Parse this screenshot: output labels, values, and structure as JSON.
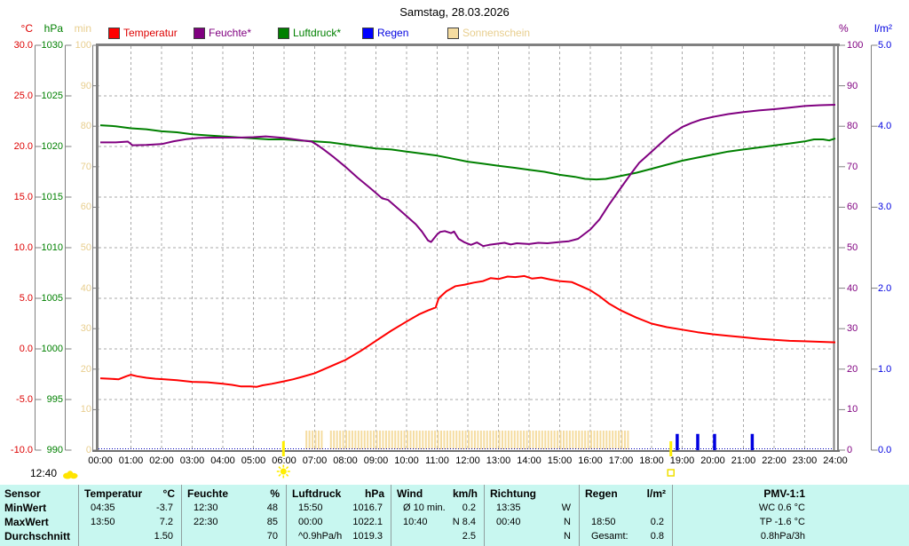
{
  "title": "Samstag, 28.03.2026",
  "sunshine_total": "12:40",
  "colors": {
    "temperature": "#dd0000",
    "temperature_line": "#ff0000",
    "humidity": "#800080",
    "pressure": "#008000",
    "rain": "#0000e0",
    "rain_box": "#0000ff",
    "sunshine": "#e8ce8e",
    "sunshine_bar": "#f5dca0",
    "grid": "#a8a8a8",
    "border": "#808080",
    "table_bg": "#c8f7f0",
    "marker_yellow": "#ffee00"
  },
  "legend": [
    {
      "label": "Temperatur",
      "color": "#dd0000",
      "box": "#ff0000"
    },
    {
      "label": "Feuchte*",
      "color": "#800080",
      "box": "#800080"
    },
    {
      "label": "Luftdruck*",
      "color": "#008000",
      "box": "#008000"
    },
    {
      "label": "Regen",
      "color": "#0000e0",
      "box": "#0000ff"
    },
    {
      "label": "Sonnenschein",
      "color": "#e8ce8e",
      "box": "#f5dca0"
    }
  ],
  "axes": {
    "temperature": {
      "unit": "°C",
      "color": "#dd0000",
      "ticks": [
        "30.0",
        "25.0",
        "20.0",
        "15.0",
        "10.0",
        "5.0",
        "0.0",
        "-5.0",
        "-10.0"
      ]
    },
    "pressure": {
      "unit": "hPa",
      "color": "#008000",
      "ticks": [
        "1030",
        "1025",
        "1020",
        "1015",
        "1010",
        "1005",
        "1000",
        "995",
        "990"
      ]
    },
    "sunshine": {
      "unit": "min",
      "color": "#e8ce8e",
      "ticks": [
        "100",
        "90",
        "80",
        "70",
        "60",
        "50",
        "40",
        "30",
        "20",
        "10",
        "0"
      ]
    },
    "humidity": {
      "unit": "%",
      "color": "#800080",
      "ticks": [
        "100",
        "90",
        "80",
        "70",
        "60",
        "50",
        "40",
        "30",
        "20",
        "10",
        "0"
      ]
    },
    "rain": {
      "unit": "l/m²",
      "color": "#0000e0",
      "ticks": [
        "5.0",
        "4.0",
        "3.0",
        "2.0",
        "1.0",
        "0.0"
      ]
    },
    "x": {
      "labels": [
        "00:00",
        "01:00",
        "02:00",
        "03:00",
        "04:00",
        "05:00",
        "06:00",
        "07:00",
        "08:00",
        "09:00",
        "10:00",
        "11:00",
        "12:00",
        "13:00",
        "14:00",
        "15:00",
        "16:00",
        "17:00",
        "18:00",
        "19:00",
        "20:00",
        "21:00",
        "22:00",
        "23:00",
        "24:00"
      ]
    }
  },
  "chart_data": {
    "type": "line",
    "x_unit": "hours",
    "x_range": [
      0,
      24
    ],
    "series": [
      {
        "name": "Temperatur",
        "axis": "temp",
        "unit": "°C",
        "color": "#ff0000",
        "points": [
          [
            0,
            -2.9
          ],
          [
            0.3,
            -2.95
          ],
          [
            0.6,
            -3.0
          ],
          [
            0.85,
            -2.7
          ],
          [
            1.0,
            -2.55
          ],
          [
            1.2,
            -2.7
          ],
          [
            1.5,
            -2.85
          ],
          [
            1.8,
            -2.95
          ],
          [
            2.1,
            -3.0
          ],
          [
            2.5,
            -3.1
          ],
          [
            3.0,
            -3.25
          ],
          [
            3.5,
            -3.3
          ],
          [
            4.0,
            -3.45
          ],
          [
            4.3,
            -3.55
          ],
          [
            4.58,
            -3.7
          ],
          [
            4.9,
            -3.7
          ],
          [
            5.1,
            -3.75
          ],
          [
            5.3,
            -3.6
          ],
          [
            5.6,
            -3.45
          ],
          [
            6.0,
            -3.2
          ],
          [
            6.3,
            -3.0
          ],
          [
            6.6,
            -2.75
          ],
          [
            7.0,
            -2.4
          ],
          [
            7.5,
            -1.75
          ],
          [
            8.0,
            -1.1
          ],
          [
            8.5,
            -0.2
          ],
          [
            9.0,
            0.8
          ],
          [
            9.5,
            1.8
          ],
          [
            10.0,
            2.7
          ],
          [
            10.4,
            3.4
          ],
          [
            10.7,
            3.8
          ],
          [
            10.95,
            4.1
          ],
          [
            11.05,
            5.0
          ],
          [
            11.3,
            5.7
          ],
          [
            11.6,
            6.2
          ],
          [
            11.9,
            6.35
          ],
          [
            12.2,
            6.55
          ],
          [
            12.5,
            6.7
          ],
          [
            12.75,
            7.0
          ],
          [
            13.0,
            6.9
          ],
          [
            13.3,
            7.15
          ],
          [
            13.55,
            7.1
          ],
          [
            13.85,
            7.2
          ],
          [
            14.1,
            6.95
          ],
          [
            14.4,
            7.05
          ],
          [
            14.7,
            6.85
          ],
          [
            15.0,
            6.7
          ],
          [
            15.4,
            6.6
          ],
          [
            15.7,
            6.2
          ],
          [
            16.0,
            5.8
          ],
          [
            16.3,
            5.2
          ],
          [
            16.6,
            4.5
          ],
          [
            17.0,
            3.8
          ],
          [
            17.5,
            3.1
          ],
          [
            18.0,
            2.5
          ],
          [
            18.5,
            2.15
          ],
          [
            19.0,
            1.9
          ],
          [
            19.5,
            1.65
          ],
          [
            20.0,
            1.45
          ],
          [
            20.5,
            1.3
          ],
          [
            21.0,
            1.15
          ],
          [
            21.5,
            1.0
          ],
          [
            22.0,
            0.9
          ],
          [
            22.5,
            0.8
          ],
          [
            23.0,
            0.75
          ],
          [
            23.5,
            0.7
          ],
          [
            24,
            0.65
          ]
        ]
      },
      {
        "name": "Feuchte",
        "axis": "pct",
        "unit": "%",
        "color": "#800080",
        "points": [
          [
            0,
            76
          ],
          [
            0.5,
            76
          ],
          [
            0.9,
            76.2
          ],
          [
            1.05,
            75.3
          ],
          [
            1.5,
            75.4
          ],
          [
            2,
            75.6
          ],
          [
            2.4,
            76.3
          ],
          [
            2.8,
            76.8
          ],
          [
            3.2,
            77.1
          ],
          [
            3.6,
            77.2
          ],
          [
            4,
            77.2
          ],
          [
            4.5,
            77.2
          ],
          [
            5,
            77.3
          ],
          [
            5.4,
            77.5
          ],
          [
            5.7,
            77.3
          ],
          [
            6,
            77.1
          ],
          [
            6.5,
            76.6
          ],
          [
            6.9,
            76.2
          ],
          [
            7.1,
            75.3
          ],
          [
            7.3,
            74.2
          ],
          [
            7.6,
            72.5
          ],
          [
            8,
            70
          ],
          [
            8.4,
            67.3
          ],
          [
            8.8,
            64.8
          ],
          [
            9,
            63.5
          ],
          [
            9.2,
            62.2
          ],
          [
            9.4,
            61.8
          ],
          [
            9.7,
            59.8
          ],
          [
            10,
            57.8
          ],
          [
            10.3,
            55.8
          ],
          [
            10.5,
            54
          ],
          [
            10.7,
            51.8
          ],
          [
            10.8,
            51.4
          ],
          [
            11,
            53.3
          ],
          [
            11.1,
            53.9
          ],
          [
            11.25,
            54.1
          ],
          [
            11.45,
            53.6
          ],
          [
            11.55,
            54.0
          ],
          [
            11.7,
            52.2
          ],
          [
            11.9,
            51.3
          ],
          [
            12.1,
            50.7
          ],
          [
            12.3,
            51.3
          ],
          [
            12.5,
            50.4
          ],
          [
            12.7,
            50.7
          ],
          [
            13,
            51.0
          ],
          [
            13.2,
            51.2
          ],
          [
            13.4,
            50.8
          ],
          [
            13.6,
            51.1
          ],
          [
            14,
            50.9
          ],
          [
            14.3,
            51.2
          ],
          [
            14.6,
            51.1
          ],
          [
            15,
            51.4
          ],
          [
            15.3,
            51.6
          ],
          [
            15.6,
            52.2
          ],
          [
            16,
            54.5
          ],
          [
            16.3,
            57
          ],
          [
            16.6,
            60.5
          ],
          [
            17,
            64.8
          ],
          [
            17.3,
            68
          ],
          [
            17.6,
            71
          ],
          [
            18,
            73.7
          ],
          [
            18.3,
            75.8
          ],
          [
            18.6,
            77.8
          ],
          [
            19,
            79.8
          ],
          [
            19.3,
            80.8
          ],
          [
            19.6,
            81.6
          ],
          [
            20,
            82.3
          ],
          [
            20.5,
            83
          ],
          [
            21,
            83.5
          ],
          [
            21.5,
            83.9
          ],
          [
            22,
            84.2
          ],
          [
            22.5,
            84.6
          ],
          [
            23,
            85
          ],
          [
            23.5,
            85.2
          ],
          [
            24,
            85.3
          ]
        ]
      },
      {
        "name": "Luftdruck",
        "axis": "hpa",
        "unit": "hPa",
        "color": "#008000",
        "points": [
          [
            0,
            1022.1
          ],
          [
            0.5,
            1022.0
          ],
          [
            1,
            1021.8
          ],
          [
            1.5,
            1021.7
          ],
          [
            2,
            1021.5
          ],
          [
            2.5,
            1021.4
          ],
          [
            3,
            1021.2
          ],
          [
            3.5,
            1021.1
          ],
          [
            4,
            1021.0
          ],
          [
            4.5,
            1020.9
          ],
          [
            5,
            1020.8
          ],
          [
            5.5,
            1020.7
          ],
          [
            6,
            1020.7
          ],
          [
            6.5,
            1020.6
          ],
          [
            7,
            1020.5
          ],
          [
            7.5,
            1020.4
          ],
          [
            8,
            1020.2
          ],
          [
            8.5,
            1020.0
          ],
          [
            9,
            1019.8
          ],
          [
            9.5,
            1019.7
          ],
          [
            10,
            1019.5
          ],
          [
            10.5,
            1019.3
          ],
          [
            11,
            1019.1
          ],
          [
            11.5,
            1018.8
          ],
          [
            12,
            1018.5
          ],
          [
            12.5,
            1018.3
          ],
          [
            13,
            1018.1
          ],
          [
            13.5,
            1017.9
          ],
          [
            14,
            1017.7
          ],
          [
            14.5,
            1017.5
          ],
          [
            15,
            1017.2
          ],
          [
            15.5,
            1017.0
          ],
          [
            15.83,
            1016.8
          ],
          [
            16.2,
            1016.75
          ],
          [
            16.5,
            1016.8
          ],
          [
            17,
            1017.1
          ],
          [
            17.5,
            1017.4
          ],
          [
            18,
            1017.8
          ],
          [
            18.5,
            1018.2
          ],
          [
            19,
            1018.6
          ],
          [
            19.5,
            1018.9
          ],
          [
            20,
            1019.2
          ],
          [
            20.5,
            1019.5
          ],
          [
            21,
            1019.7
          ],
          [
            21.5,
            1019.9
          ],
          [
            22,
            1020.1
          ],
          [
            22.5,
            1020.3
          ],
          [
            23,
            1020.5
          ],
          [
            23.3,
            1020.7
          ],
          [
            23.6,
            1020.7
          ],
          [
            23.8,
            1020.6
          ],
          [
            24,
            1020.8
          ]
        ]
      }
    ],
    "sunshine": {
      "start": 6.73,
      "end": 17.25,
      "bar_top_min": 5,
      "gaps": [
        [
          7.3,
          7.45
        ]
      ]
    },
    "rain": {
      "baseline": 0,
      "events": [
        {
          "t": 18.83,
          "v": 0.2
        },
        {
          "t": 19.5,
          "v": 0.2
        },
        {
          "t": 20.05,
          "v": 0.2
        },
        {
          "t": 21.28,
          "v": 0.2
        }
      ]
    },
    "markers": {
      "sunrise_t": 5.98,
      "sunset_t": 18.63
    }
  },
  "table": {
    "row_headers": [
      "Sensor",
      "MinWert",
      "MaxWert",
      "Durchschnitt"
    ],
    "columns": [
      {
        "name": "Temperatur",
        "unit": "°C",
        "rows": [
          [
            "04:35",
            "-3.7"
          ],
          [
            "13:50",
            "7.2"
          ],
          [
            "",
            "1.50"
          ]
        ]
      },
      {
        "name": "Feuchte",
        "unit": "%",
        "rows": [
          [
            "12:30",
            "48"
          ],
          [
            "22:30",
            "85"
          ],
          [
            "",
            "70"
          ]
        ]
      },
      {
        "name": "Luftdruck",
        "unit": "hPa",
        "rows": [
          [
            "15:50",
            "1016.7"
          ],
          [
            "00:00",
            "1022.1"
          ],
          [
            "^0.9hPa/h",
            "1019.3"
          ]
        ]
      },
      {
        "name": "Wind",
        "unit": "km/h",
        "rows": [
          [
            "Ø 10 min.",
            "0.2"
          ],
          [
            "10:40",
            "N 8.4"
          ],
          [
            "",
            "2.5"
          ]
        ]
      },
      {
        "name": "Richtung",
        "unit": "",
        "rows": [
          [
            "13:35",
            "W"
          ],
          [
            "00:40",
            "N"
          ],
          [
            "",
            "N"
          ]
        ]
      },
      {
        "name": "Regen",
        "unit": "l/m²",
        "rows": [
          [
            "",
            ""
          ],
          [
            "18:50",
            "0.2"
          ],
          [
            "Gesamt:",
            "0.8"
          ]
        ]
      },
      {
        "name": "PMV-1:1",
        "unit": "",
        "rows": [
          [
            "",
            "WC 0.6 °C"
          ],
          [
            "",
            "TP -1.6 °C"
          ],
          [
            "",
            "0.8hPa/3h"
          ]
        ]
      }
    ]
  }
}
